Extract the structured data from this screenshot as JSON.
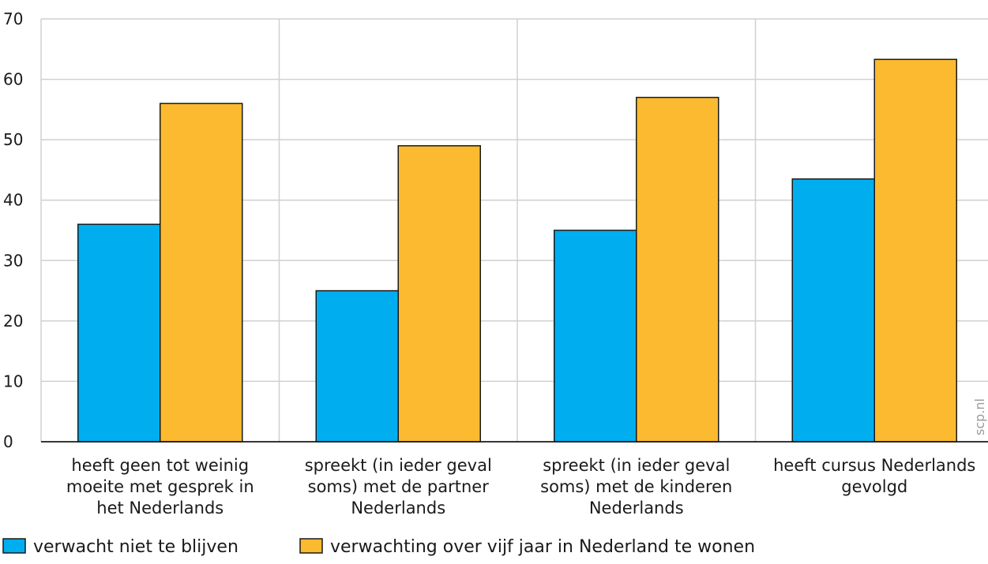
{
  "chart_data": {
    "type": "bar",
    "categories": [
      [
        "heeft geen tot weinig",
        "moeite met gesprek in",
        "het Nederlands"
      ],
      [
        "spreekt (in ieder geval",
        "soms) met de partner",
        "Nederlands"
      ],
      [
        "spreekt (in ieder geval",
        "soms) met de kinderen",
        "Nederlands"
      ],
      [
        "heeft cursus Nederlands",
        "gevolgd"
      ]
    ],
    "series": [
      {
        "name": "verwacht niet te blijven",
        "color": "#00aeef",
        "values": [
          36,
          25,
          35,
          43.5
        ]
      },
      {
        "name": "verwachting over vijf jaar in Nederland te wonen",
        "color": "#fbba30",
        "values": [
          56,
          49,
          57,
          63.3
        ]
      }
    ],
    "ylim": [
      0,
      70
    ],
    "yticks": [
      "0",
      "10",
      "20",
      "30",
      "40",
      "50",
      "60",
      "70"
    ],
    "grid": true,
    "legend": "bottom-left",
    "title": "",
    "xlabel": "",
    "ylabel": ""
  },
  "watermark": "scp.nl"
}
